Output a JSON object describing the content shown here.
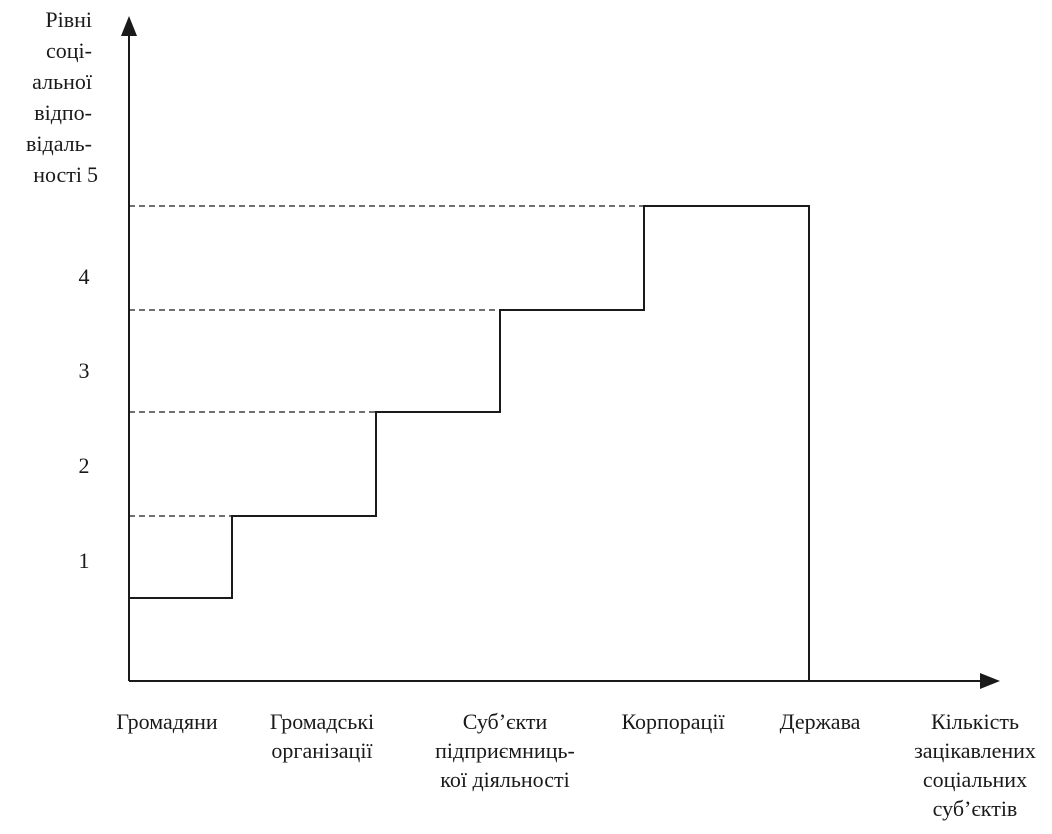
{
  "chart_data": {
    "type": "line",
    "subtype": "step",
    "ylabel": [
      "Рівні",
      "соці-",
      "альної",
      "відпо-",
      "відаль-",
      "ності"
    ],
    "y_ticks": [
      "1",
      "2",
      "3",
      "4",
      "5"
    ],
    "categories": [
      {
        "lines": [
          "Громадяни"
        ]
      },
      {
        "lines": [
          "Громадські",
          "організації"
        ]
      },
      {
        "lines": [
          "Суб’єкти",
          "підприємниць-",
          "кої діяльності"
        ]
      },
      {
        "lines": [
          "Корпорації"
        ]
      },
      {
        "lines": [
          "Держава"
        ]
      }
    ],
    "xlabel": [
      "Кількість",
      "зацікавлених",
      "соціальних",
      "суб’єктів"
    ],
    "values": [
      1,
      2,
      3,
      4,
      5
    ],
    "reference_lines": "dashed",
    "ylim": [
      0,
      5.5
    ]
  }
}
